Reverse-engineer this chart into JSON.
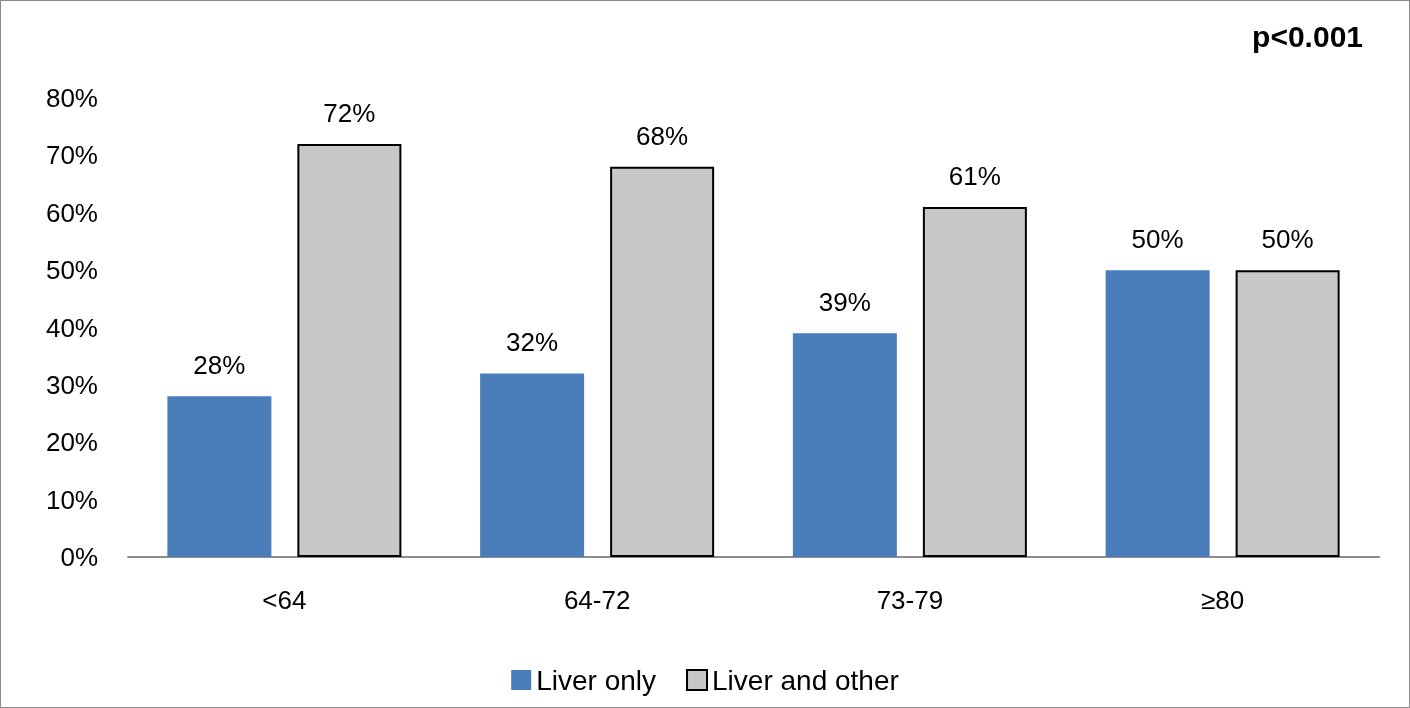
{
  "chart_data": {
    "type": "bar",
    "categories": [
      "<64",
      "64-72",
      "73-79",
      "≥80"
    ],
    "series": [
      {
        "name": "Liver only",
        "color": "#4a7ebb",
        "values": [
          28,
          32,
          39,
          50
        ],
        "value_labels": [
          "28%",
          "32%",
          "39%",
          "50%"
        ]
      },
      {
        "name": "Liver and other",
        "color": "#c8c8c6",
        "values": [
          72,
          68,
          61,
          50
        ],
        "value_labels": [
          "72%",
          "68%",
          "61%",
          "50%"
        ]
      }
    ],
    "ylim": [
      0,
      80
    ],
    "yticks": [
      {
        "value": 0,
        "label": "0%"
      },
      {
        "value": 10,
        "label": "10%"
      },
      {
        "value": 20,
        "label": "20%"
      },
      {
        "value": 30,
        "label": "30%"
      },
      {
        "value": 40,
        "label": "40%"
      },
      {
        "value": 50,
        "label": "50%"
      },
      {
        "value": 60,
        "label": "60%"
      },
      {
        "value": 70,
        "label": "70%"
      },
      {
        "value": 80,
        "label": "80%"
      }
    ],
    "legend": "bottom",
    "annotations": [
      "p<0.001"
    ]
  }
}
